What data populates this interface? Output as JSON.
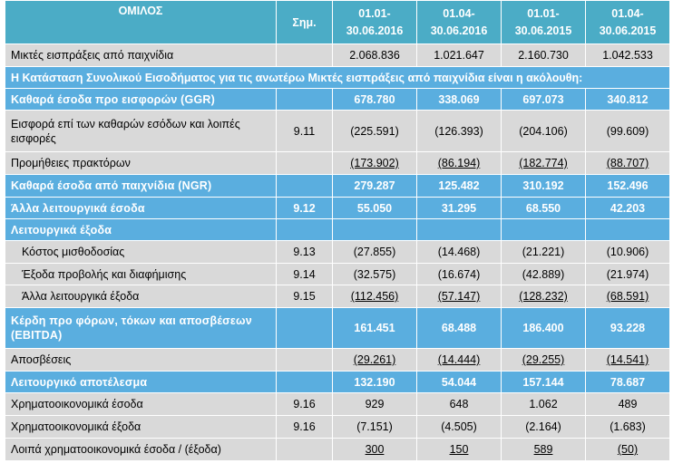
{
  "header": {
    "group_label": "ΟΜΙΛΟΣ",
    "note_label": "Σημ.",
    "periods": [
      {
        "line1": "01.01-",
        "line2": "30.06.2016"
      },
      {
        "line1": "01.04-",
        "line2": "30.06.2016"
      },
      {
        "line1": "01.01-",
        "line2": "30.06.2015"
      },
      {
        "line1": "01.04-",
        "line2": "30.06.2015"
      }
    ]
  },
  "section_title": "Η Κατάσταση Συνολικού Εισοδήματος για τις ανωτέρω Μικτές εισπράξεις από παιχνίδια είναι η ακόλουθη:",
  "rows": [
    {
      "label": "Μικτές εισπράξεις από παιχνίδια",
      "note": "",
      "values": [
        "2.068.836",
        "1.021.647",
        "2.160.730",
        "1.042.533"
      ]
    },
    {
      "label": "Καθαρά έσοδα προ εισφορών (GGR)",
      "note": "",
      "values": [
        "678.780",
        "338.069",
        "697.073",
        "340.812"
      ]
    },
    {
      "label": "Εισφορά επί των καθαρών εσόδων και λοιπές εισφορές",
      "note": "9.11",
      "values": [
        "(225.591)",
        "(126.393)",
        "(204.106)",
        "(99.609)"
      ]
    },
    {
      "label": "Προμήθειες πρακτόρων",
      "note": "",
      "values": [
        "(173.902)",
        "(86.194)",
        "(182.774)",
        "(88.707)"
      ]
    },
    {
      "label": "Καθαρά έσοδα από παιχνίδια (NGR)",
      "note": "",
      "values": [
        "279.287",
        "125.482",
        "310.192",
        "152.496"
      ]
    },
    {
      "label": "Άλλα λειτουργικά έσοδα",
      "note": "9.12",
      "values": [
        "55.050",
        "31.295",
        "68.550",
        "42.203"
      ]
    },
    {
      "label": "Λειτουργικά έξοδα",
      "note": "",
      "values": [
        "",
        "",
        "",
        ""
      ]
    },
    {
      "label": "Κόστος μισθοδοσίας",
      "note": "9.13",
      "values": [
        "(27.855)",
        "(14.468)",
        "(21.221)",
        "(10.906)"
      ]
    },
    {
      "label": "Έξοδα προβολής και διαφήμισης",
      "note": "9.14",
      "values": [
        "(32.575)",
        "(16.674)",
        "(42.889)",
        "(21.974)"
      ]
    },
    {
      "label": "Άλλα λειτουργικά έξοδα",
      "note": "9.15",
      "values": [
        "(112.456)",
        "(57.147)",
        "(128.232)",
        "(68.591)"
      ]
    },
    {
      "label": "Κέρδη προ φόρων, τόκων και αποσβέσεων (EBITDA)",
      "note": "",
      "values": [
        "161.451",
        "68.488",
        "186.400",
        "93.228"
      ]
    },
    {
      "label": "Αποσβέσεις",
      "note": "",
      "values": [
        "(29.261)",
        "(14.444)",
        "(29.255)",
        "(14.541)"
      ]
    },
    {
      "label": "Λειτουργικό αποτέλεσμα",
      "note": "",
      "values": [
        "132.190",
        "54.044",
        "157.144",
        "78.687"
      ]
    },
    {
      "label": "Χρηματοοικονομικά έσοδα",
      "note": "9.16",
      "values": [
        "929",
        "648",
        "1.062",
        "489"
      ]
    },
    {
      "label": "Χρηματοοικονομικά έξοδα",
      "note": "9.16",
      "values": [
        "(7.151)",
        "(4.505)",
        "(2.164)",
        "(1.683)"
      ]
    },
    {
      "label": "Λοιπά χρηματοοικονομικά έσοδα / (έξοδα)",
      "note": "",
      "values": [
        "300",
        "150",
        "589",
        "(50)"
      ]
    }
  ]
}
